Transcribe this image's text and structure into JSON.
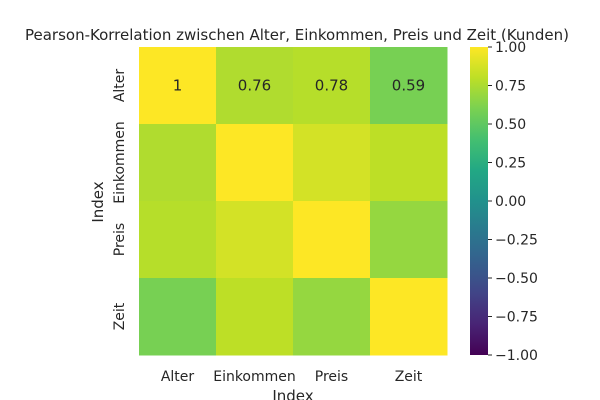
{
  "chart_data": {
    "type": "heatmap",
    "title": "Pearson-Korrelation zwischen Alter, Einkommen, Preis und Zeit (Kunden)",
    "xlabel": "Index",
    "ylabel": "Index",
    "x_categories": [
      "Alter",
      "Einkommen",
      "Preis",
      "Zeit"
    ],
    "y_categories": [
      "Alter",
      "Einkommen",
      "Preis",
      "Zeit"
    ],
    "values": [
      [
        1.0,
        0.76,
        0.78,
        0.59
      ],
      [
        0.76,
        1.0,
        0.87,
        0.8
      ],
      [
        0.78,
        0.87,
        1.0,
        0.68
      ],
      [
        0.59,
        0.8,
        0.68,
        1.0
      ]
    ],
    "annotations": [
      [
        "1",
        "0.76",
        "0.78",
        "0.59"
      ],
      [
        "",
        "",
        "",
        ""
      ],
      [
        "",
        "",
        "",
        ""
      ],
      [
        "",
        "",
        "",
        ""
      ]
    ],
    "colormap": "viridis",
    "vmin": -1.0,
    "vmax": 1.0,
    "colorbar_ticks": [
      "1.00",
      "0.75",
      "0.50",
      "0.25",
      "0.00",
      "−0.25",
      "−0.50",
      "−0.75",
      "−1.00"
    ],
    "colorbar_tick_values": [
      1.0,
      0.75,
      0.5,
      0.25,
      0.0,
      -0.25,
      -0.5,
      -0.75,
      -1.0
    ]
  }
}
